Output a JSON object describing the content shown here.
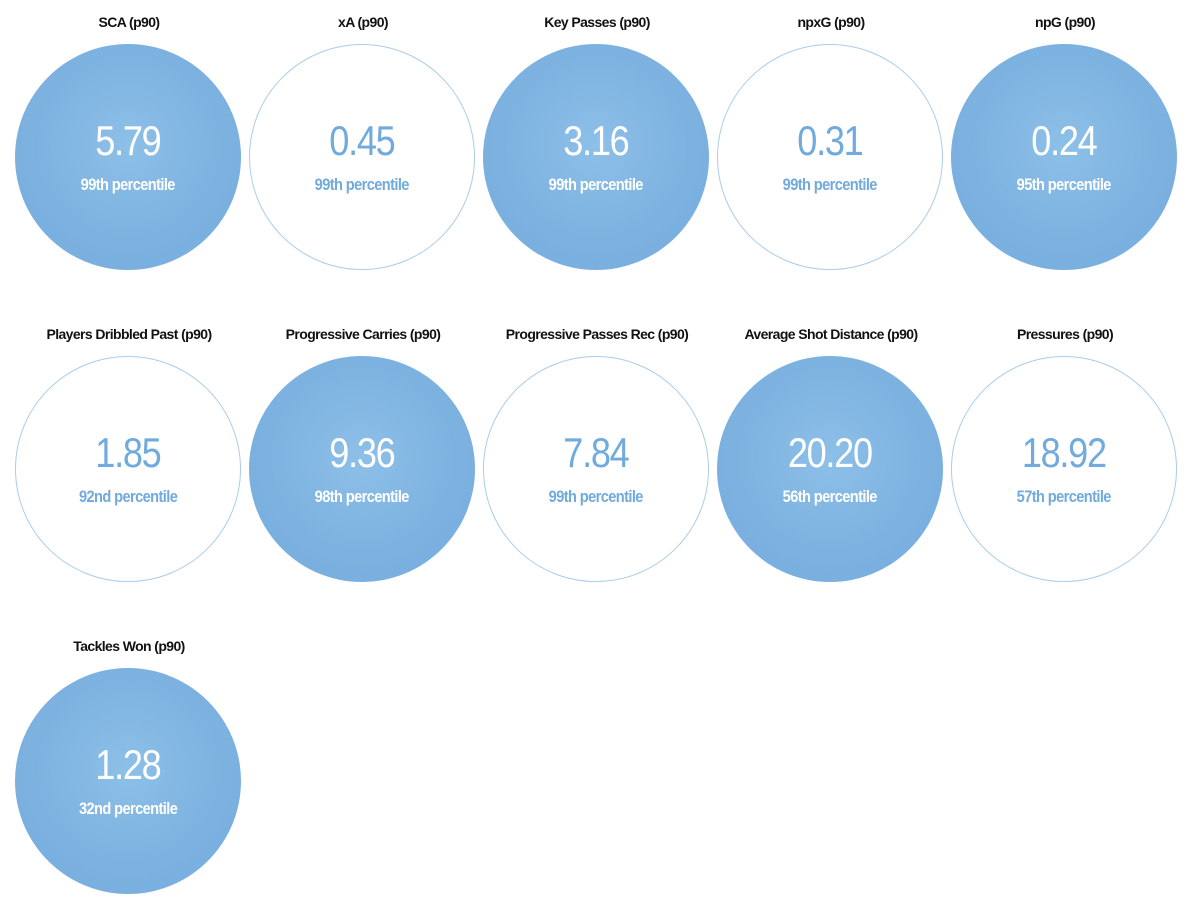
{
  "stats": [
    {
      "title": "SCA (p90)",
      "value": "5.79",
      "percentile_label": "99th percentile",
      "style": "filled"
    },
    {
      "title": "xA (p90)",
      "value": "0.45",
      "percentile_label": "99th percentile",
      "style": "outline"
    },
    {
      "title": "Key Passes (p90)",
      "value": "3.16",
      "percentile_label": "99th percentile",
      "style": "filled"
    },
    {
      "title": "npxG (p90)",
      "value": "0.31",
      "percentile_label": "99th percentile",
      "style": "outline"
    },
    {
      "title": "npG (p90)",
      "value": "0.24",
      "percentile_label": "95th percentile",
      "style": "filled"
    },
    {
      "title": "Players Dribbled Past (p90)",
      "value": "1.85",
      "percentile_label": "92nd percentile",
      "style": "outline"
    },
    {
      "title": "Progressive Carries (p90)",
      "value": "9.36",
      "percentile_label": "98th percentile",
      "style": "filled"
    },
    {
      "title": "Progressive Passes Rec (p90)",
      "value": "7.84",
      "percentile_label": "99th percentile",
      "style": "outline"
    },
    {
      "title": "Average Shot Distance (p90)",
      "value": "20.20",
      "percentile_label": "56th percentile",
      "style": "filled"
    },
    {
      "title": "Pressures (p90)",
      "value": "18.92",
      "percentile_label": "57th percentile",
      "style": "outline"
    },
    {
      "title": "Tackles Won (p90)",
      "value": "1.28",
      "percentile_label": "32nd percentile",
      "style": "filled"
    }
  ],
  "colors": {
    "fill": "#7db2e0",
    "outline": "#a9cdea",
    "outline_text": "#71aadc",
    "title_text": "#111111"
  }
}
